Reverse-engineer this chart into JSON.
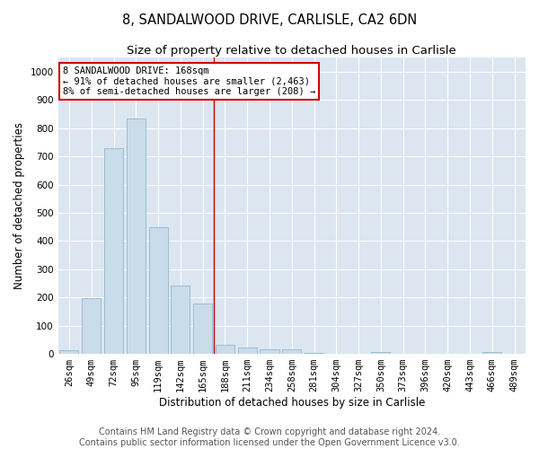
{
  "title": "8, SANDALWOOD DRIVE, CARLISLE, CA2 6DN",
  "subtitle": "Size of property relative to detached houses in Carlisle",
  "xlabel": "Distribution of detached houses by size in Carlisle",
  "ylabel": "Number of detached properties",
  "categories": [
    "26sqm",
    "49sqm",
    "72sqm",
    "95sqm",
    "119sqm",
    "142sqm",
    "165sqm",
    "188sqm",
    "211sqm",
    "234sqm",
    "258sqm",
    "281sqm",
    "304sqm",
    "327sqm",
    "350sqm",
    "373sqm",
    "396sqm",
    "420sqm",
    "443sqm",
    "466sqm",
    "489sqm"
  ],
  "values": [
    13,
    196,
    730,
    835,
    448,
    242,
    178,
    32,
    22,
    17,
    16,
    5,
    0,
    0,
    7,
    0,
    0,
    0,
    0,
    8,
    0
  ],
  "bar_color": "#c9dcea",
  "bar_edge_color": "#90b8d0",
  "vline_x": 6.5,
  "vline_color": "#cc0000",
  "annotation_text": "8 SANDALWOOD DRIVE: 168sqm\n← 91% of detached houses are smaller (2,463)\n8% of semi-detached houses are larger (208) →",
  "annotation_box_color": "#ffffff",
  "annotation_box_edge_color": "#cc0000",
  "ylim": [
    0,
    1050
  ],
  "yticks": [
    0,
    100,
    200,
    300,
    400,
    500,
    600,
    700,
    800,
    900,
    1000
  ],
  "background_color": "#dce6f0",
  "fig_background": "#ffffff",
  "footer_text": "Contains HM Land Registry data © Crown copyright and database right 2024.\nContains public sector information licensed under the Open Government Licence v3.0.",
  "title_fontsize": 10.5,
  "subtitle_fontsize": 9.5,
  "xlabel_fontsize": 8.5,
  "ylabel_fontsize": 8.5,
  "tick_fontsize": 7.5,
  "footer_fontsize": 7
}
